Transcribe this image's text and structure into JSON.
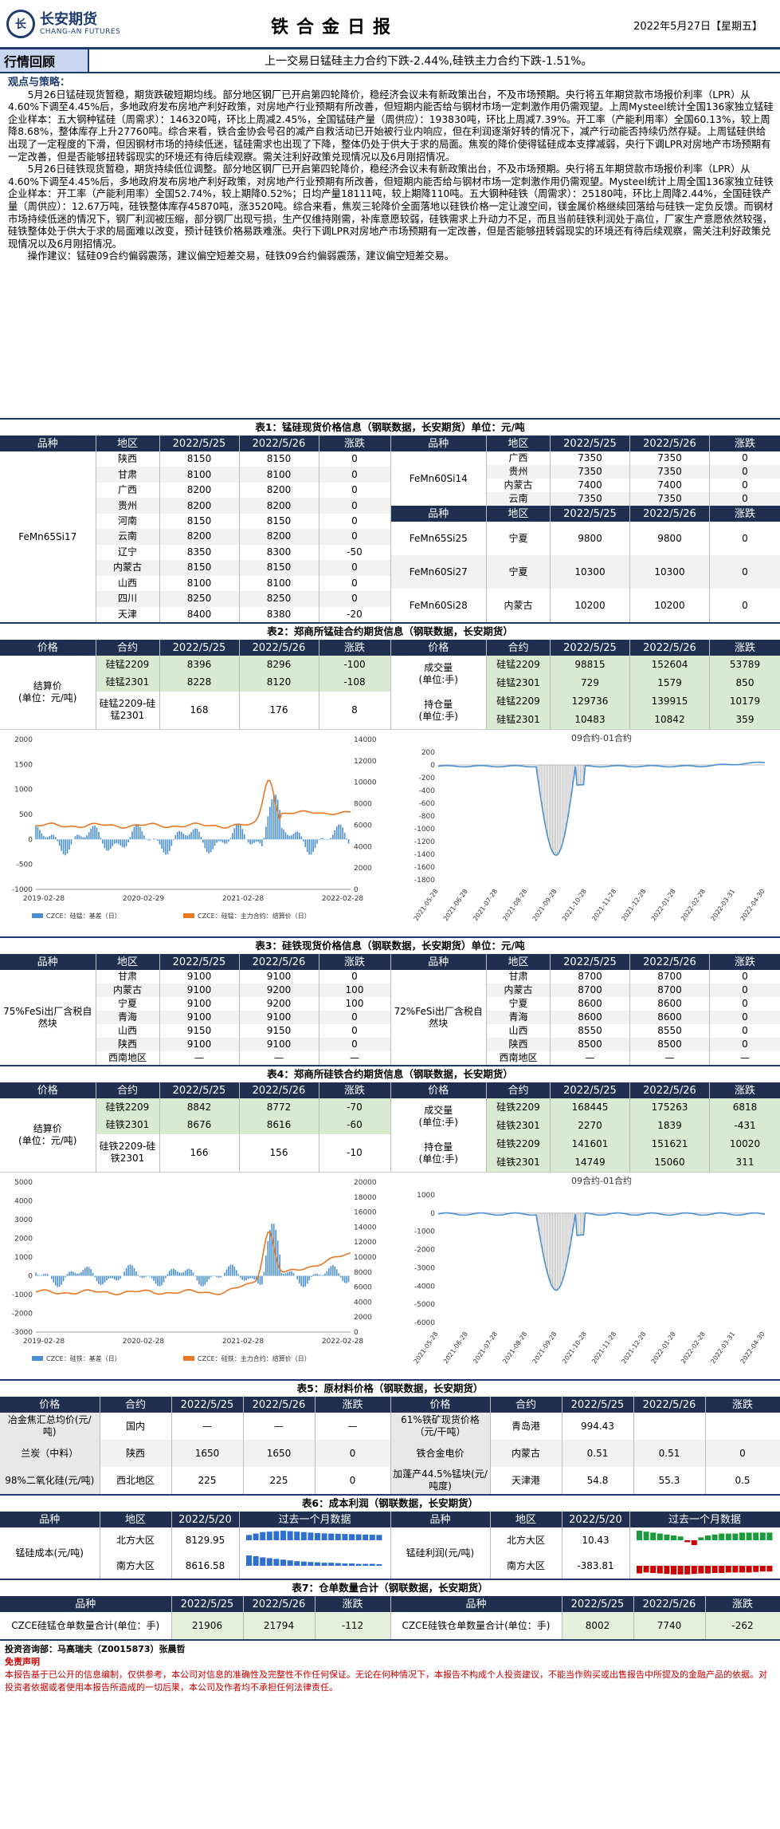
{
  "header": {
    "logo_cn": "长安期货",
    "logo_en": "CHANG-AN FUTURES",
    "title": "铁合金日报",
    "date": "2022年5月27日【星期五】"
  },
  "market": {
    "label": "行情回顾",
    "summary": "上一交易日锰硅主力合约下跌-2.44%,硅铁主力合约下跌-1.51%。"
  },
  "strategy": {
    "heading": "观点与策略：",
    "p1": "5月26日锰硅现货暂稳，期货跌破短期均线。部分地区钢厂已开启第四轮降价，稳经济会议未有新政策出台，不及市场预期。央行将五年期贷款市场报价利率（LPR）从4.60%下调至4.45%后，多地政府发布房地产利好政策，对房地产行业预期有所改善，但短期内能否给与钢材市场一定刺激作用仍需观望。上周Mysteel统计全国136家独立锰硅企业样本：五大钢种锰硅（周需求）：146320吨，环比上周减2.45%，全国锰硅产量（周供应）：193830吨，环比上周减7.39%。开工率（产能利用率）全国60.13%，较上周降8.68%，整体库存上升27760吨。综合来看，铁合金协会号召的减产自救活动已开始被行业内响应，但在利润逐渐好转的情况下，减产行动能否持续仍然存疑。上周锰硅供给出现了一定程度的下滑，但因钢材市场的持续低迷，锰硅需求也出现了下降，整体仍处于供大于求的局面。焦炭的降价使得锰硅成本支撑减弱，央行下调LPR对房地产市场预期有一定改善，但是否能够扭转弱现实的环境还有待后续观察。需关注利好政策兑现情况以及6月刚招情况。",
    "p2": "5月26日硅铁现货暂稳，期货持续低位调整。部分地区钢厂已开启第四轮降价，稳经济会议未有新政策出台，不及市场预期。央行将五年期贷款市场报价利率（LPR）从4.60%下调至4.45%后，多地政府发布房地产利好政策，对房地产行业预期有所改善，但短期内能否给与钢材市场一定刺激作用仍需观望。Mysteel统计上周全国136家独立硅铁企业样本：开工率（产能利用率）全国52.74%，较上期降0.52%；日均产量18111吨，较上期降110吨。五大钢种硅铁（周需求）：25180吨，环比上周降2.44%，全国硅铁产量（周供应）：12.67万吨，硅铁整体库存45870吨，涨3520吨。综合来看，焦炭三轮降价全面落地以硅铁价格一定让渡空间，镁金属价格继续回落给与硅铁一定负反馈。而钢材市场持续低迷的情况下，钢厂利润被压缩，部分钢厂出现亏损，生产仅维持刚需，补库意愿较弱，硅铁需求上升动力不足，而且当前硅铁利润处于高位，厂家生产意愿依然较强，硅铁整体处于供大于求的局面难以改变，预计硅铁价格易跌难涨。央行下调LPR对房地产市场预期有一定改善，但是否能够扭转弱现实的环境还有待后续观察，需关注利好政策兑现情况以及6月刚招情况。",
    "p3": "操作建议：锰硅09合约偏弱震荡，建议偏空短差交易，硅铁09合约偏弱震荡，建议偏空短差交易。"
  },
  "t1": {
    "caption": "表1：锰硅现货价格信息（钢联数据，长安期货）单位：元/吨",
    "cols": [
      "品种",
      "地区",
      "2022/5/25",
      "2022/5/26",
      "涨跌"
    ],
    "left_name": "FeMn65Si17",
    "left": [
      [
        "陕西",
        "8150",
        "8150",
        "0"
      ],
      [
        "甘肃",
        "8100",
        "8100",
        "0"
      ],
      [
        "广西",
        "8200",
        "8200",
        "0"
      ],
      [
        "贵州",
        "8200",
        "8200",
        "0"
      ],
      [
        "河南",
        "8150",
        "8150",
        "0"
      ],
      [
        "云南",
        "8200",
        "8200",
        "0"
      ],
      [
        "辽宁",
        "8350",
        "8300",
        "-50"
      ],
      [
        "内蒙古",
        "8150",
        "8150",
        "0"
      ],
      [
        "山西",
        "8100",
        "8100",
        "0"
      ],
      [
        "四川",
        "8250",
        "8250",
        "0"
      ],
      [
        "天津",
        "8400",
        "8380",
        "-20"
      ]
    ],
    "r14": "FeMn60Si14",
    "r14rows": [
      [
        "广西",
        "7350",
        "7350",
        "0"
      ],
      [
        "贵州",
        "7350",
        "7350",
        "0"
      ],
      [
        "内蒙古",
        "7400",
        "7400",
        "0"
      ],
      [
        "云南",
        "7350",
        "7350",
        "0"
      ]
    ],
    "rsub": [
      [
        "FeMn65Si25",
        "宁夏",
        "9800",
        "9800",
        "0"
      ],
      [
        "FeMn60Si27",
        "宁夏",
        "10300",
        "10300",
        "0"
      ],
      [
        "FeMn60Si28",
        "内蒙古",
        "10200",
        "10200",
        "0"
      ]
    ]
  },
  "t2": {
    "caption": "表2：郑商所锰硅合约期货信息（钢联数据，长安期货）",
    "cols": [
      "价格",
      "合约",
      "2022/5/25",
      "2022/5/26",
      "涨跌",
      "价格",
      "合约",
      "2022/5/25",
      "2022/5/26",
      "涨跌"
    ],
    "settle": "结算价",
    "unit": "(单位：元/吨)",
    "vol": "成交量",
    "vunit": "(单位:手)",
    "oi": "持仓量",
    "ounit": "(单位:手)",
    "left": [
      [
        "硅锰2209",
        "8396",
        "8296",
        "-100"
      ],
      [
        "硅锰2301",
        "8228",
        "8120",
        "-108"
      ],
      [
        "硅锰2209-硅锰2301",
        "168",
        "176",
        "8"
      ]
    ],
    "vol_rows": [
      [
        "硅锰2209",
        "98815",
        "152604",
        "53789"
      ],
      [
        "硅锰2301",
        "729",
        "1579",
        "850"
      ]
    ],
    "oi_rows": [
      [
        "硅锰2209",
        "129736",
        "139915",
        "10179"
      ],
      [
        "硅锰2301",
        "10483",
        "10842",
        "359"
      ]
    ]
  },
  "c1": {
    "chart_data": {
      "type": "line",
      "series": [
        {
          "name": "CZCE：硅锰：基差（日）",
          "axis": "left",
          "color": "#4a8fd4"
        },
        {
          "name": "CZCE：硅锰：主力合约：结算价（日）",
          "axis": "right",
          "color": "#e87722"
        }
      ],
      "left_ticks": [
        "2000",
        "1500",
        "1000",
        "500",
        "0",
        "-500",
        "-1000"
      ],
      "right_ticks": [
        "14000",
        "12000",
        "10000",
        "8000",
        "6000",
        "4000",
        "2000",
        "0"
      ],
      "x_ticks": [
        "2019-02-28",
        "2020-02-29",
        "2021-02-28",
        "2022-02-28"
      ]
    }
  },
  "c2": {
    "chart_data": {
      "type": "line",
      "title": "09合约-01合约",
      "y_ticks": [
        "200",
        "0",
        "-200",
        "-400",
        "-600",
        "-800",
        "-1000",
        "-1200",
        "-1400",
        "-1600",
        "-1800"
      ],
      "x_ticks": [
        "2021-05-28",
        "2021-06-28",
        "2021-07-28",
        "2021-08-28",
        "2021-09-28",
        "2021-10-28",
        "2021-11-28",
        "2021-12-28",
        "2022-01-28",
        "2022-02-28",
        "2022-03-31",
        "2022-04-30"
      ]
    }
  },
  "t3": {
    "caption": "表3：硅铁现货价格信息（钢联数据，长安期货）单位：元/吨",
    "cols": [
      "品种",
      "地区",
      "2022/5/25",
      "2022/5/26",
      "涨跌",
      "品种",
      "地区",
      "2022/5/25",
      "2022/5/26",
      "涨跌"
    ],
    "lname": "75%FeSi出厂含税自然块",
    "rname": "72%FeSi出厂含税自然块",
    "left": [
      [
        "甘肃",
        "9100",
        "9100",
        "0"
      ],
      [
        "内蒙古",
        "9100",
        "9200",
        "100"
      ],
      [
        "宁夏",
        "9100",
        "9200",
        "100"
      ],
      [
        "青海",
        "9100",
        "9100",
        "0"
      ],
      [
        "山西",
        "9150",
        "9150",
        "0"
      ],
      [
        "陕西",
        "9100",
        "9100",
        "0"
      ],
      [
        "西南地区",
        "—",
        "—",
        "—"
      ]
    ],
    "right": [
      [
        "甘肃",
        "8700",
        "8700",
        "0"
      ],
      [
        "内蒙古",
        "8700",
        "8700",
        "0"
      ],
      [
        "宁夏",
        "8600",
        "8600",
        "0"
      ],
      [
        "青海",
        "8600",
        "8600",
        "0"
      ],
      [
        "山西",
        "8550",
        "8550",
        "0"
      ],
      [
        "陕西",
        "8500",
        "8500",
        "0"
      ],
      [
        "西南地区",
        "—",
        "—",
        "—"
      ]
    ]
  },
  "t4": {
    "caption": "表4：郑商所硅铁合约期货信息（钢联数据，长安期货）",
    "left": [
      [
        "硅铁2209",
        "8842",
        "8772",
        "-70"
      ],
      [
        "硅铁2301",
        "8676",
        "8616",
        "-60"
      ],
      [
        "硅铁2209-硅铁2301",
        "166",
        "156",
        "-10"
      ]
    ],
    "vol_rows": [
      [
        "硅铁2209",
        "168445",
        "175263",
        "6818"
      ],
      [
        "硅铁2301",
        "2270",
        "1839",
        "-431"
      ]
    ],
    "oi_rows": [
      [
        "硅铁2209",
        "141601",
        "151621",
        "10020"
      ],
      [
        "硅铁2301",
        "14749",
        "15060",
        "311"
      ]
    ]
  },
  "c3": {
    "chart_data": {
      "type": "line",
      "series": [
        {
          "name": "CZCE：硅铁：基差（日）",
          "axis": "left",
          "color": "#4a8fd4"
        },
        {
          "name": "CZCE：硅铁：主力合约：结算价（日）",
          "axis": "right",
          "color": "#e87722"
        }
      ],
      "left_ticks": [
        "5000",
        "4000",
        "3000",
        "2000",
        "1000",
        "0",
        "-1000",
        "-2000",
        "-3000"
      ],
      "right_ticks": [
        "20000",
        "18000",
        "16000",
        "14000",
        "12000",
        "10000",
        "8000",
        "6000",
        "4000",
        "2000",
        "0"
      ],
      "x_ticks": [
        "2019-02-28",
        "2020-02-28",
        "2021-02-28",
        "2022-02-28"
      ]
    }
  },
  "c4": {
    "chart_data": {
      "type": "line",
      "title": "09合约-01合约",
      "y_ticks": [
        "1000",
        "0",
        "-1000",
        "-2000",
        "-3000",
        "-4000",
        "-5000",
        "-6000"
      ],
      "x_ticks": [
        "2021-05-28",
        "2021-06-28",
        "2021-07-28",
        "2021-08-28",
        "2021-09-28",
        "2021-10-28",
        "2021-11-28",
        "2021-12-28",
        "2022-01-28",
        "2022-02-28",
        "2022-03-31",
        "2022-04-30"
      ]
    }
  },
  "t5": {
    "caption": "表5：原材料价格（钢联数据，长安期货）",
    "rows": [
      [
        "冶金焦汇总均价(元/吨)",
        "国内",
        "—",
        "—",
        "—",
        "61%铁矿现货价格（元/干吨）",
        "青岛港",
        "994.43",
        "",
        ""
      ],
      [
        "兰炭（中料）",
        "陕西",
        "1650",
        "1650",
        "0",
        "铁合金电价",
        "内蒙古",
        "0.51",
        "0.51",
        "0"
      ],
      [
        "98%二氧化硅(元/吨)",
        "西北地区",
        "225",
        "225",
        "0",
        "加蓬产44.5%锰块(元/吨度)",
        "天津港",
        "54.8",
        "55.3",
        "0.5"
      ]
    ]
  },
  "t6": {
    "caption": "表6：成本利润（钢联数据，长安期货）",
    "cols": [
      "品种",
      "地区",
      "2022/5/20",
      "过去一个月数据",
      "品种",
      "地区",
      "2022/5/20",
      "过去一个月数据"
    ],
    "lname": "锰硅成本(元/吨)",
    "rname": "锰硅利润(元/吨)",
    "left": [
      [
        "北方大区",
        "8129.95"
      ],
      [
        "南方大区",
        "8616.58"
      ]
    ],
    "right": [
      [
        "北方大区",
        "10.43"
      ],
      [
        "南方大区",
        "-383.81"
      ]
    ]
  },
  "t7": {
    "caption": "表7：仓单数量合计（钢联数据，长安期货）",
    "cols": [
      "品种",
      "2022/5/25",
      "2022/5/26",
      "涨跌",
      "品种",
      "2022/5/25",
      "2022/5/26",
      "涨跌"
    ],
    "l": [
      "CZCE硅锰仓单数量合计(单位：手)",
      "21906",
      "21794",
      "-112"
    ],
    "r": [
      "CZCE硅铁仓单数量合计(单位：手)",
      "8002",
      "7740",
      "-262"
    ]
  },
  "footer": {
    "dept": "投资咨询部：马高瑞夫（Z0015873）张晨哲",
    "disc_title": "免责声明",
    "disc": "本报告基于已公开的信息编制，仅供参考，本公司对信息的准确性及完整性不作任何保证。无论在何种情况下，本报告不构成个人投资建议，不能当作购买或出售报告中所提及的金融产品的依据。对投资者依据或者使用本报告所造成的一切后果，本公司及作者均不承担任何法律责任。"
  }
}
